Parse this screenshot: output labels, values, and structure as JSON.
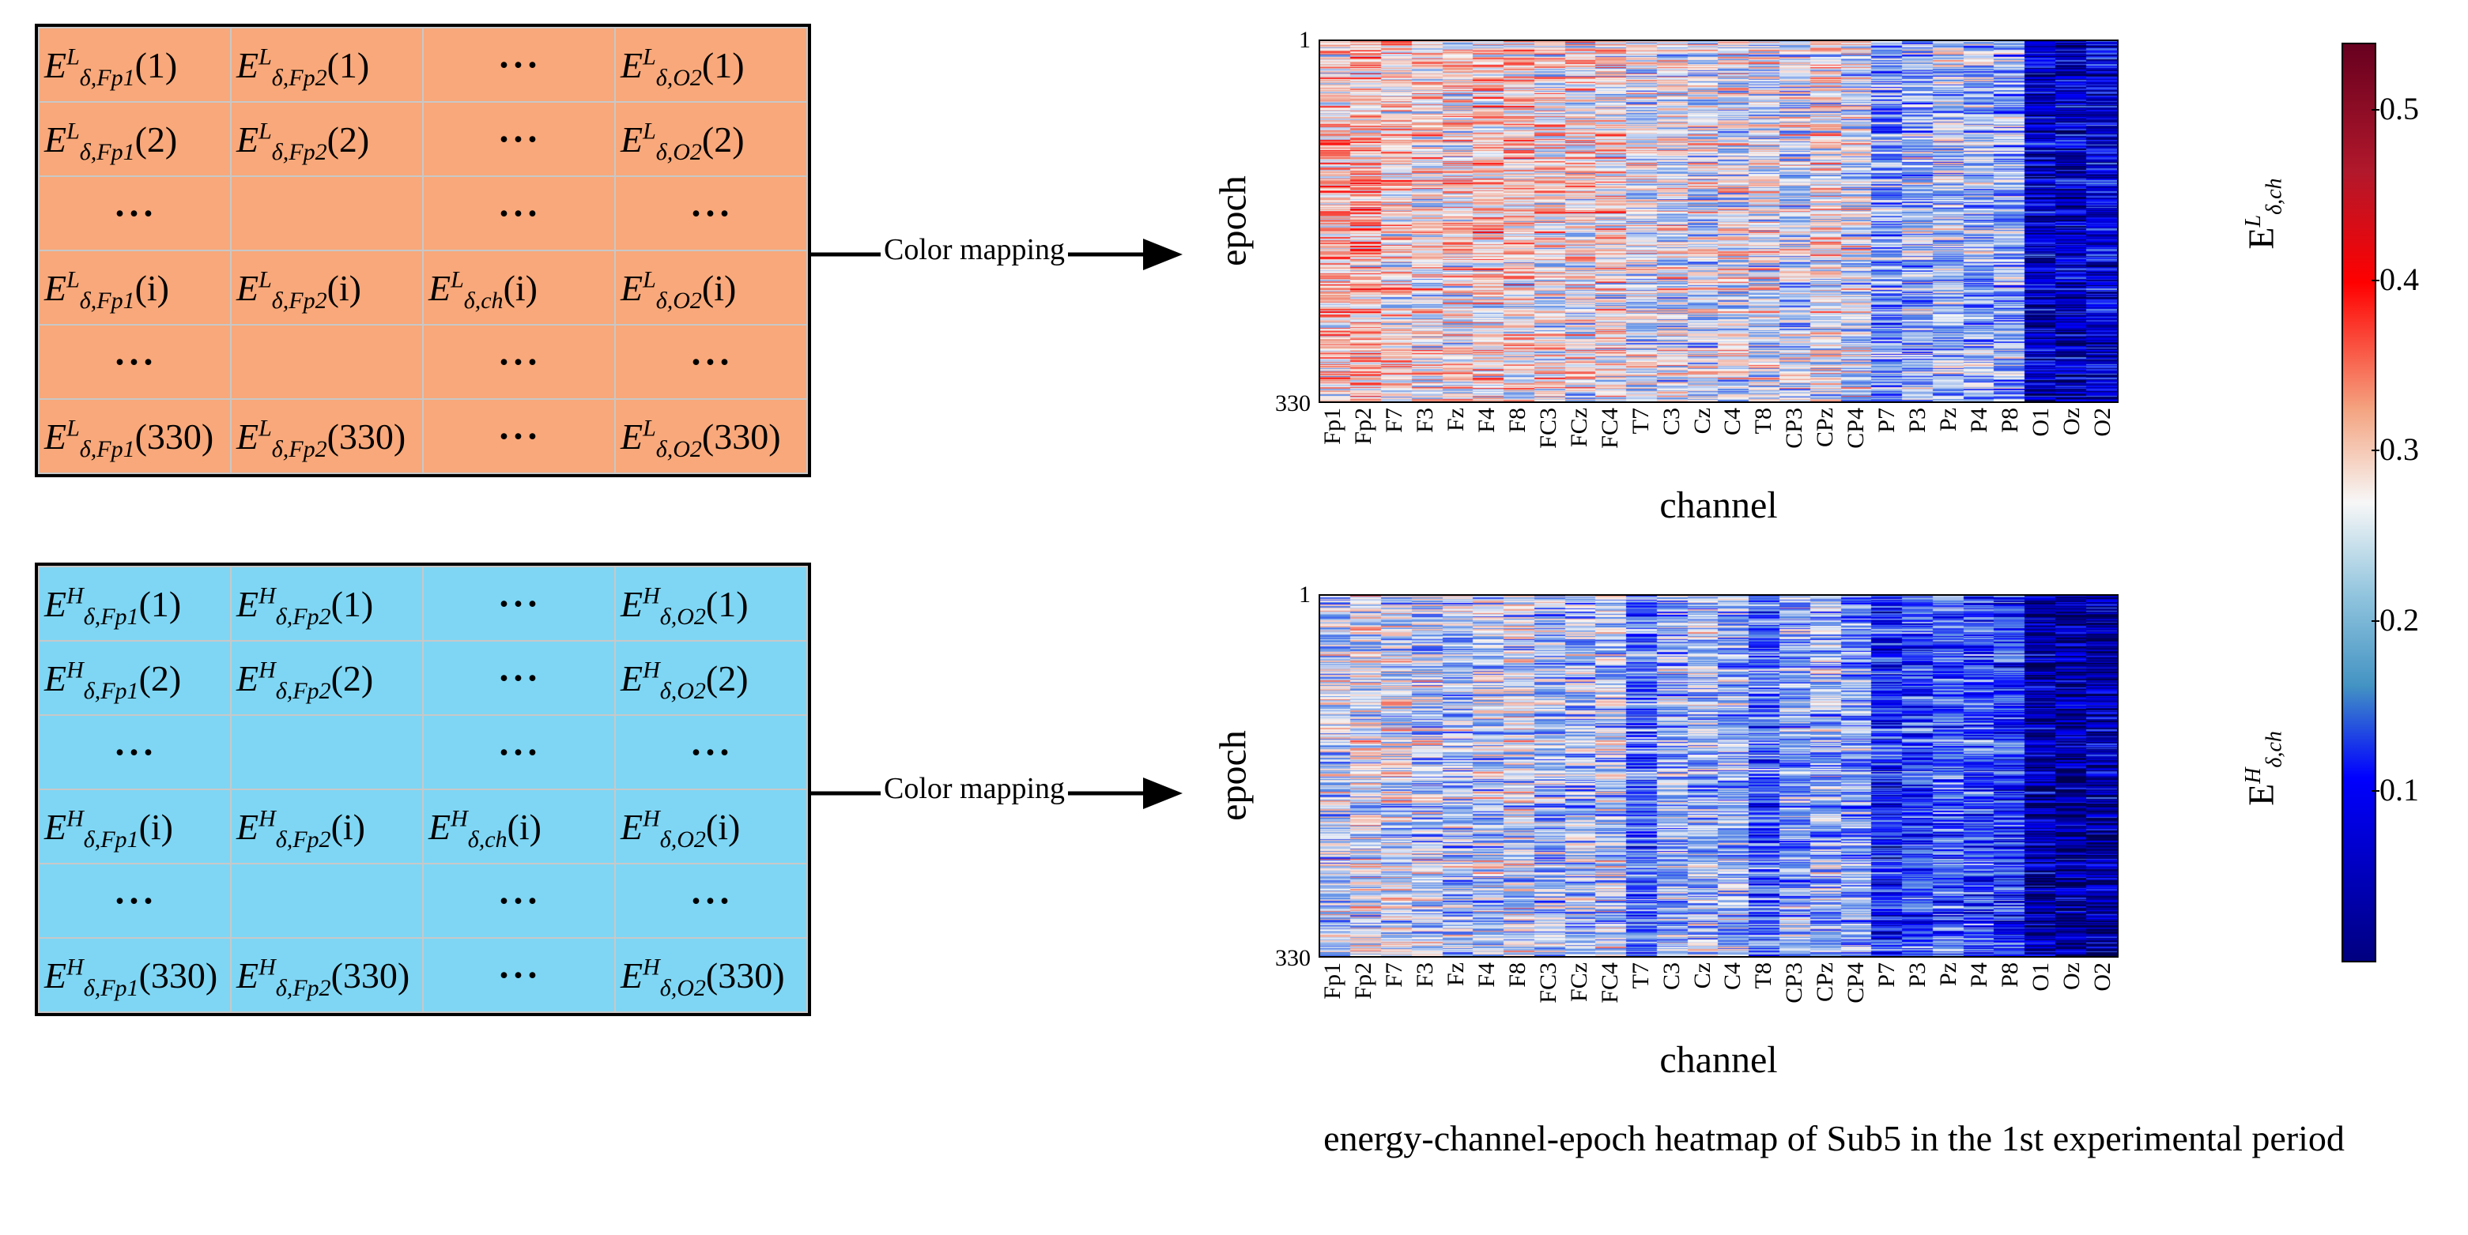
{
  "low_matrix": {
    "symbol": "E",
    "band_sub": "δ",
    "freq_sup": "L",
    "rows": [
      [
        "Fp1|(1)",
        "Fp2|(1)",
        "…",
        "O2|(1)"
      ],
      [
        "Fp1|(2)",
        "Fp2|(2)",
        "…",
        "O2|(2)"
      ],
      [
        "…",
        "",
        "…",
        "…"
      ],
      [
        "Fp1|(i)",
        "Fp2|(i)",
        "ch|(i)",
        "O2|(i)"
      ],
      [
        "…",
        "",
        "…",
        "…"
      ],
      [
        "Fp1|(330)",
        "Fp2|(330)",
        "…",
        "O2|(330)"
      ]
    ]
  },
  "high_matrix": {
    "symbol": "E",
    "band_sub": "δ",
    "freq_sup": "H",
    "rows": [
      [
        "Fp1|(1)",
        "Fp2|(1)",
        "…",
        "O2|(1)"
      ],
      [
        "Fp1|(2)",
        "Fp2|(2)",
        "…",
        "O2|(2)"
      ],
      [
        "…",
        "",
        "…",
        "…"
      ],
      [
        "Fp1|(i)",
        "Fp2|(i)",
        "ch|(i)",
        "O2|(i)"
      ],
      [
        "…",
        "",
        "…",
        "…"
      ],
      [
        "Fp1|(330)",
        "Fp2|(330)",
        "…",
        "O2|(330)"
      ]
    ]
  },
  "arrow_label": "Color mapping",
  "heatmaps": {
    "ylabel": "epoch",
    "xlabel": "channel",
    "y_tick_top": "1",
    "y_tick_bottom": "330",
    "channels": [
      "Fp1",
      "Fp2",
      "F7",
      "F3",
      "Fz",
      "F4",
      "F8",
      "FC3",
      "FCz",
      "FC4",
      "T7",
      "C3",
      "Cz",
      "C4",
      "T8",
      "CP3",
      "CPz",
      "CP4",
      "P7",
      "P3",
      "Pz",
      "P4",
      "P8",
      "O1",
      "Oz",
      "O2"
    ],
    "low_label_sup": "L",
    "high_label_sup": "H",
    "label_base": "E",
    "label_sub": "δ,ch"
  },
  "colors": {
    "low_matrix_bg": "#F8A87A",
    "high_matrix_bg": "#7ED6F4"
  },
  "chart_data": {
    "type": "heatmap",
    "epochs": 330,
    "channels": [
      "Fp1",
      "Fp2",
      "F7",
      "F3",
      "Fz",
      "F4",
      "F8",
      "FC3",
      "FCz",
      "FC4",
      "T7",
      "C3",
      "Cz",
      "C4",
      "T8",
      "CP3",
      "CPz",
      "CP4",
      "P7",
      "P3",
      "Pz",
      "P4",
      "P8",
      "O1",
      "Oz",
      "O2"
    ],
    "colorbar_ticks": [
      "0.5",
      "0.4",
      "0.3",
      "0.2",
      "0.1"
    ],
    "colorbar_range": [
      0.0,
      0.54
    ],
    "channel_mean_low": [
      0.3,
      0.31,
      0.29,
      0.28,
      0.28,
      0.29,
      0.29,
      0.28,
      0.28,
      0.28,
      0.26,
      0.26,
      0.25,
      0.26,
      0.26,
      0.25,
      0.27,
      0.25,
      0.2,
      0.22,
      0.23,
      0.22,
      0.21,
      0.08,
      0.07,
      0.09
    ],
    "channel_mean_high": [
      0.24,
      0.26,
      0.25,
      0.24,
      0.23,
      0.24,
      0.25,
      0.23,
      0.23,
      0.24,
      0.17,
      0.22,
      0.23,
      0.22,
      0.17,
      0.21,
      0.22,
      0.2,
      0.13,
      0.15,
      0.17,
      0.15,
      0.14,
      0.06,
      0.05,
      0.06
    ],
    "series": [
      {
        "name": "E^L δ,ch",
        "description_mean_per_channel": "channel_mean_low"
      },
      {
        "name": "E^H δ,ch",
        "description_mean_per_channel": "channel_mean_high"
      }
    ]
  },
  "caption": "energy-channel-epoch heatmap of Sub5 in the 1st experimental period"
}
